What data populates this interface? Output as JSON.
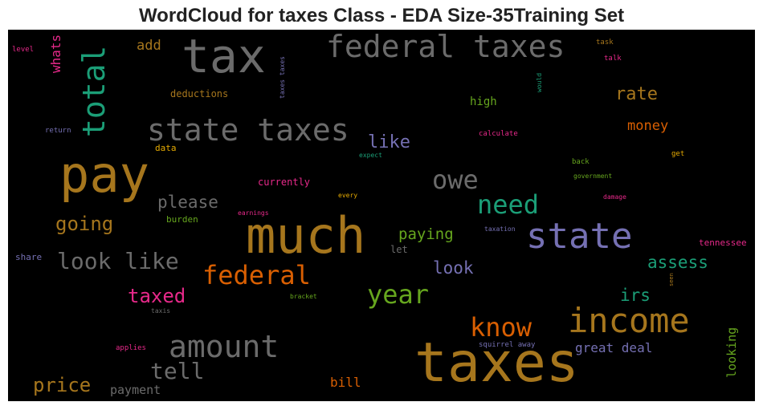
{
  "title": "WordCloud for taxes Class - EDA Size-35Training Set",
  "colors": {
    "gray": "#6b6b6b",
    "gold": "#a6761d",
    "orange": "#d95f02",
    "teal": "#1b9e77",
    "lavender": "#7570b3",
    "green": "#66a61e",
    "pink": "#e7298a",
    "yellow": "#e6ab02"
  },
  "words": [
    "tax",
    "federal taxes",
    "total",
    "whats",
    "add",
    "level",
    "deductions",
    "taxes taxes",
    "would",
    "task",
    "talk",
    "rate",
    "high",
    "state taxes",
    "return",
    "data",
    "like",
    "calculate",
    "money",
    "pay",
    "expect",
    "back",
    "government",
    "get",
    "owe",
    "currently",
    "please",
    "need",
    "every",
    "damage",
    "going",
    "burden",
    "earnings",
    "much",
    "state",
    "paying",
    "taxation",
    "let",
    "look like",
    "federal",
    "share",
    "look",
    "assess",
    "tennessee",
    "seen",
    "taxed",
    "year",
    "bracket",
    "irs",
    "taxis",
    "know",
    "income",
    "applies",
    "amount",
    "squirrel away",
    "great deal",
    "looking",
    "tell",
    "taxes",
    "price",
    "payment",
    "bill"
  ]
}
